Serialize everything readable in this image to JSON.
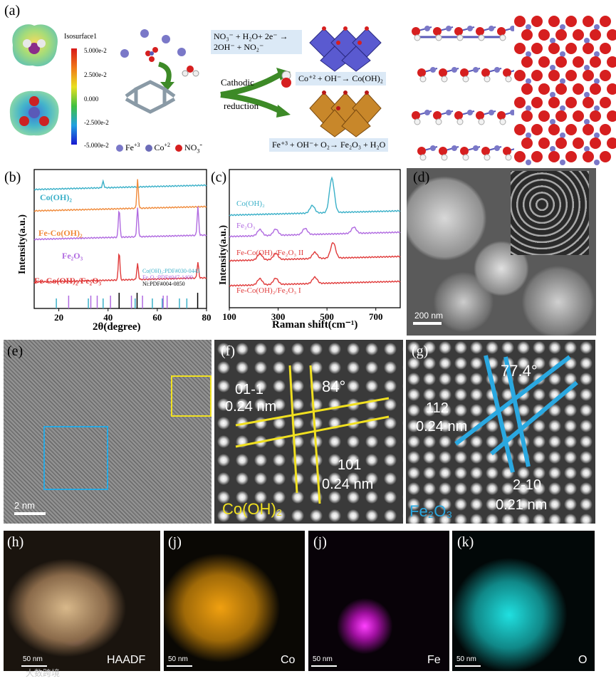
{
  "panels": {
    "a": "(a)",
    "b": "(b)",
    "c": "(c)",
    "d": "(d)",
    "e": "(e)",
    "f": "(f)",
    "g": "(g)",
    "h": "(h)",
    "j1": "(j)",
    "j2": "(j)",
    "k": "(k)"
  },
  "panel_a": {
    "isosurface_title": "Isosurface1",
    "colorbar_ticks": [
      "5.000e-2",
      "2.500e-2",
      "0.000",
      "-2.500e-2",
      "-5.000e-2"
    ],
    "legend": {
      "fe": "Fe",
      "fe_sup": "+3",
      "co": "Co",
      "co_sup": "+2",
      "no3": "NO",
      "no3_sub": "3",
      "no3_sup": "-"
    },
    "reaction_1": "NO₃⁻ + H₂O+ 2e⁻ → 2OH⁻ + NO₂⁻",
    "reaction_1_highlight": "OH",
    "cathodic": "Cathodic",
    "reduction": "reduction",
    "reaction_2": "Co⁺² + OH⁻→ Co(OH)₂",
    "reaction_3": "Fe⁺³ + OH⁻+ O₂→ Fe₂O₃ + H₂O",
    "colors": {
      "fe": "#7a78c8",
      "co": "#6c6cb8",
      "o": "#d61f1f",
      "h": "#ffffff",
      "arrow": "#3d8a27"
    }
  },
  "panel_b": {
    "series_labels": [
      "Co(OH)₂",
      "Fe-Co(OH)₂",
      "Fe₂O₃",
      "Fe-Co(OH)₂/Fe₂O₃"
    ],
    "ref_labels": [
      "Co(OH)₂:PDF#030-0443",
      "Fe₂O₃:PDF#047-1409",
      "Ni:PDF#004-0850"
    ],
    "ylabel": "Intensity(a.u.)",
    "xlabel": "2θ(degree)",
    "colors": [
      "#3ab0c8",
      "#f08a3a",
      "#b06ae0",
      "#e03a3a"
    ]
  },
  "panel_c": {
    "series_labels": [
      "Co(OH)₂",
      "Fe₂O₃",
      "Fe-Co(OH)₂/Fe₂O₃ II",
      "Fe-Co(OH)₂/Fe₂O₃ I"
    ],
    "ylabel": "Intensity(a.u.)",
    "xlabel": "Raman shift(cm⁻¹)",
    "colors": [
      "#3ab0c8",
      "#b06ae0",
      "#e03a3a",
      "#e03a3a"
    ]
  },
  "panel_d": {
    "scale": "200 nm"
  },
  "panel_e": {
    "scale": "2 nm"
  },
  "panel_f": {
    "plane1": "01-1",
    "d1": "0.24 nm",
    "angle": "84°",
    "plane2": "101",
    "d2": "0.24 nm",
    "phase": "Co(OH)₂",
    "color": "#f0e020"
  },
  "panel_g": {
    "plane1": "112",
    "d1": "0.24 nm",
    "angle": "77.4°",
    "plane2": "2-10",
    "d2": "0.21 nm",
    "phase": "Fe₂O₃",
    "color": "#2aa8e0"
  },
  "eds": {
    "h": {
      "label": "HAADF",
      "scale": "50 nm"
    },
    "j1": {
      "label": "Co",
      "scale": "50 nm",
      "color": "#f0a010"
    },
    "j2": {
      "label": "Fe",
      "scale": "50 nm",
      "color": "#e020e0"
    },
    "k": {
      "label": "O",
      "scale": "50 nm",
      "color": "#18c8c8"
    }
  },
  "watermark": "大数跨境",
  "chart_data": [
    {
      "type": "line",
      "title": "",
      "xlabel": "2θ(degree)",
      "ylabel": "Intensity(a.u.)",
      "xlim": [
        10,
        80
      ],
      "x_ticks": [
        20,
        40,
        60,
        80
      ],
      "series": [
        {
          "name": "Co(OH)₂",
          "peaks": [
            {
              "x": 38,
              "intensity": "weak"
            }
          ]
        },
        {
          "name": "Fe-Co(OH)₂",
          "peaks": [
            {
              "x": 52,
              "intensity": "strong"
            }
          ]
        },
        {
          "name": "Fe₂O₃",
          "peaks": [
            {
              "x": 44.5,
              "intensity": "strong"
            },
            {
              "x": 52,
              "intensity": "strong"
            },
            {
              "x": 76.5,
              "intensity": "strong"
            }
          ]
        },
        {
          "name": "Fe-Co(OH)₂/Fe₂O₃",
          "peaks": [
            {
              "x": 44.5,
              "intensity": "strong"
            },
            {
              "x": 52,
              "intensity": "medium"
            },
            {
              "x": 76.5,
              "intensity": "medium"
            }
          ]
        }
      ],
      "references": [
        {
          "name": "Co(OH)₂:PDF#030-0443",
          "positions": [
            19,
            32,
            38,
            51,
            58,
            62,
            69,
            72
          ]
        },
        {
          "name": "Fe₂O₃:PDF#047-1409",
          "positions": [
            24,
            33,
            35.6,
            41,
            49.5,
            54,
            62.4,
            64
          ]
        },
        {
          "name": "Ni:PDF#004-0850",
          "positions": [
            44.5,
            51.8,
            76.4
          ]
        }
      ]
    },
    {
      "type": "line",
      "title": "",
      "xlabel": "Raman shift(cm⁻¹)",
      "ylabel": "Intensity(a.u.)",
      "xlim": [
        100,
        800
      ],
      "x_ticks": [
        100,
        300,
        500,
        700
      ],
      "series": [
        {
          "name": "Co(OH)₂",
          "peaks": [
            {
              "x": 440,
              "intensity": "weak"
            },
            {
              "x": 520,
              "intensity": "strong"
            }
          ]
        },
        {
          "name": "Fe₂O₃",
          "peaks": [
            {
              "x": 225,
              "intensity": "weak"
            },
            {
              "x": 290,
              "intensity": "weak"
            },
            {
              "x": 410,
              "intensity": "weak"
            },
            {
              "x": 610,
              "intensity": "weak"
            }
          ]
        },
        {
          "name": "Fe-Co(OH)₂/Fe₂O₃ II",
          "peaks": [
            {
              "x": 225,
              "intensity": "weak"
            },
            {
              "x": 290,
              "intensity": "weak"
            },
            {
              "x": 450,
              "intensity": "weak"
            },
            {
              "x": 525,
              "intensity": "medium"
            }
          ]
        },
        {
          "name": "Fe-Co(OH)₂/Fe₂O₃ I",
          "peaks": [
            {
              "x": 225,
              "intensity": "weak"
            },
            {
              "x": 290,
              "intensity": "weak"
            },
            {
              "x": 450,
              "intensity": "weak"
            }
          ]
        }
      ]
    }
  ]
}
